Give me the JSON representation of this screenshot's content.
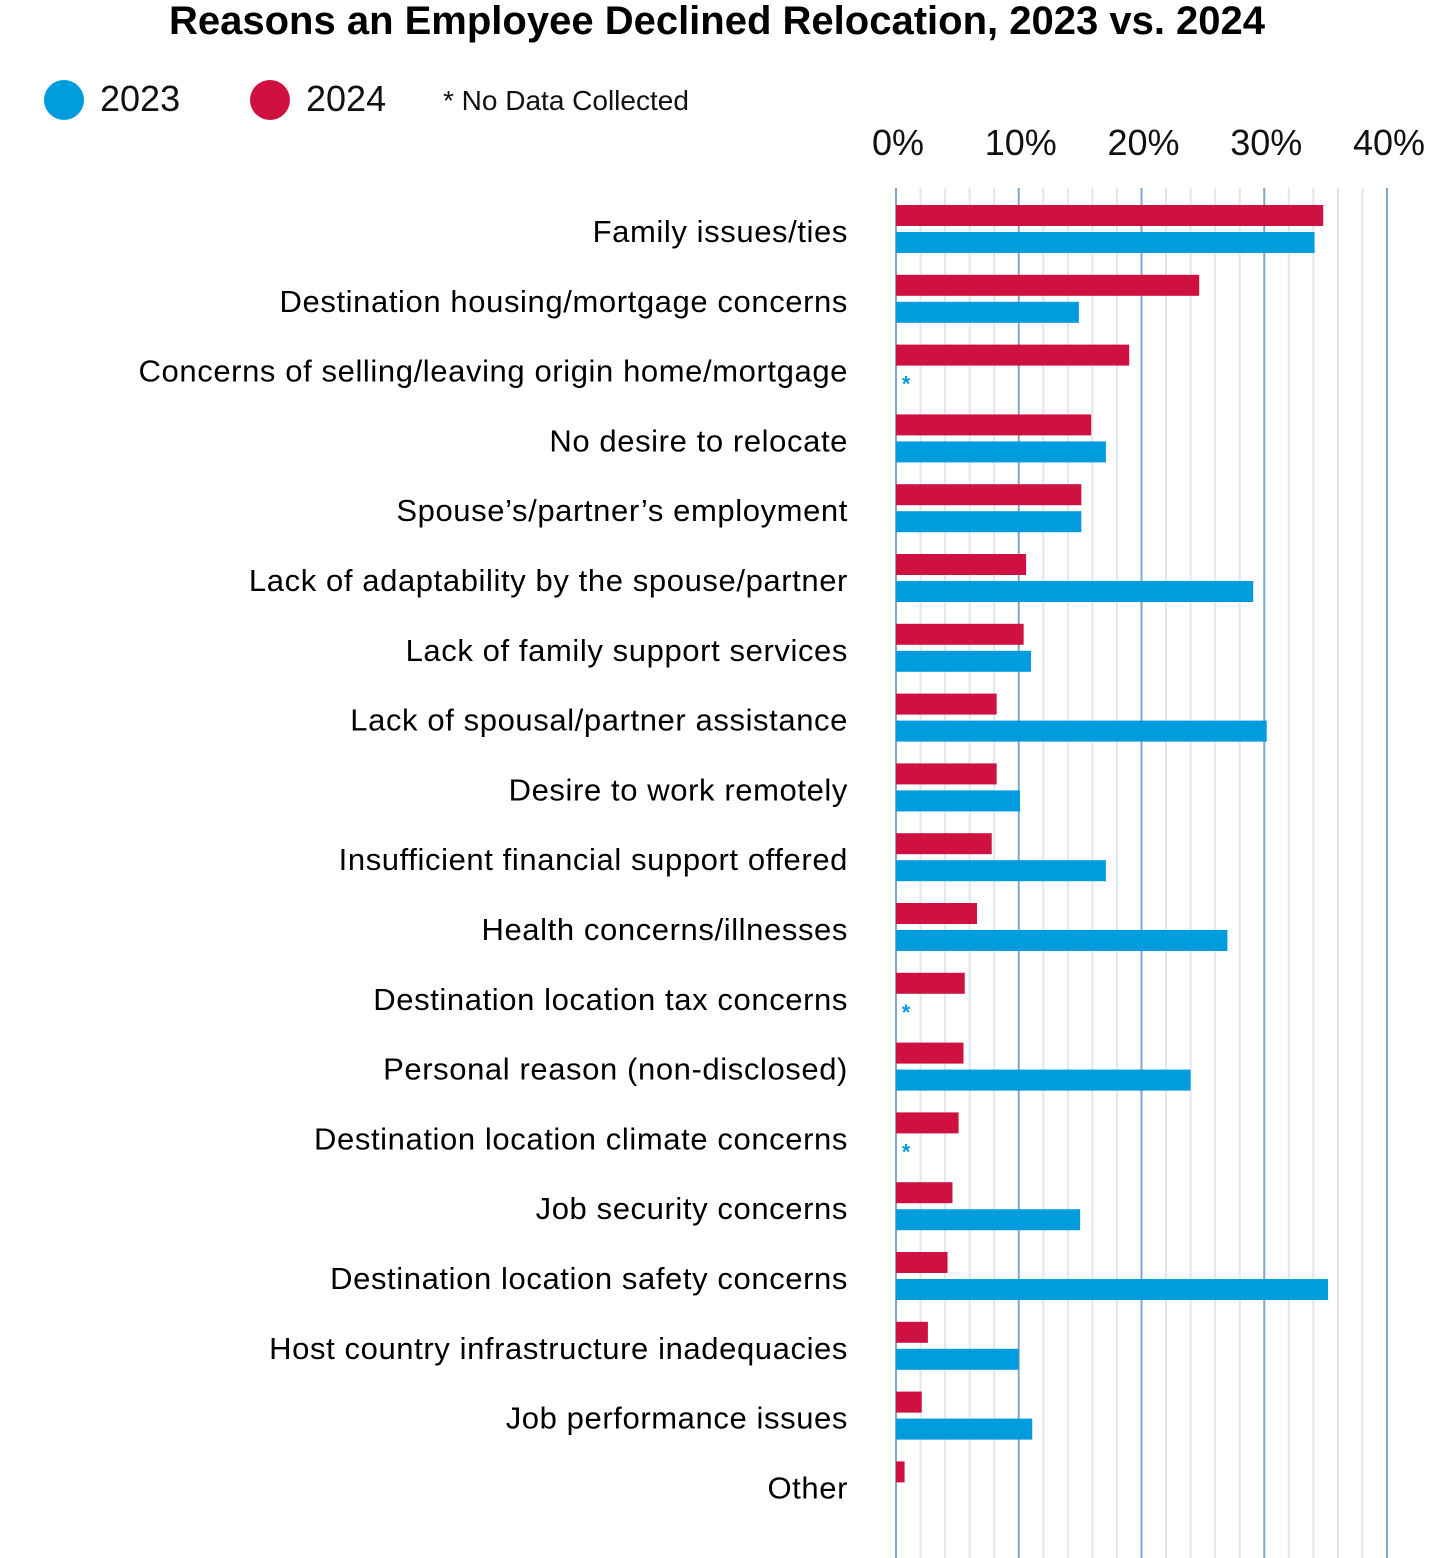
{
  "chart_data": {
    "type": "bar",
    "orientation": "horizontal",
    "title": "Reasons an Employee Declined Relocation, 2023 vs. 2024",
    "note": "* No Data Collected",
    "missing_marker": "*",
    "legend_position": "top-left",
    "xlim": [
      0,
      40
    ],
    "x_ticks": [
      "0%",
      "10%",
      "20%",
      "30%",
      "40%"
    ],
    "x_tick_values": [
      0,
      10,
      20,
      30,
      40
    ],
    "minor_grid_step": 2,
    "grid": true,
    "categories": [
      "Family issues/ties",
      "Destination housing/mortgage concerns",
      "Concerns of selling/leaving origin home/mortgage",
      "No desire to relocate",
      "Spouse’s/partner’s employment",
      "Lack of adaptability by the spouse/partner",
      "Lack of family support services",
      "Lack of spousal/partner assistance",
      "Desire to work remotely",
      "Insufficient financial support offered",
      "Health concerns/illnesses",
      "Destination location tax concerns",
      "Personal reason (non-disclosed)",
      "Destination location climate concerns",
      "Job security concerns",
      "Destination location safety concerns",
      "Host country infrastructure inadequacies",
      "Job performance issues",
      "Other"
    ],
    "series": [
      {
        "name": "2024",
        "color": "#CE1141",
        "values": [
          34.8,
          24.7,
          19.0,
          15.9,
          15.1,
          10.6,
          10.4,
          8.2,
          8.2,
          7.8,
          6.6,
          5.6,
          5.5,
          5.1,
          4.6,
          4.2,
          2.6,
          2.1,
          0.7
        ]
      },
      {
        "name": "2023",
        "color": "#009CDE",
        "values": [
          34.1,
          14.9,
          null,
          17.1,
          15.1,
          29.1,
          11.0,
          30.2,
          10.1,
          17.1,
          27.0,
          null,
          24.0,
          null,
          15.0,
          35.2,
          10.0,
          11.1,
          null
        ]
      }
    ]
  },
  "colors": {
    "major_grid": "#7FA7C9",
    "minor_grid": "#DCE8F2"
  }
}
